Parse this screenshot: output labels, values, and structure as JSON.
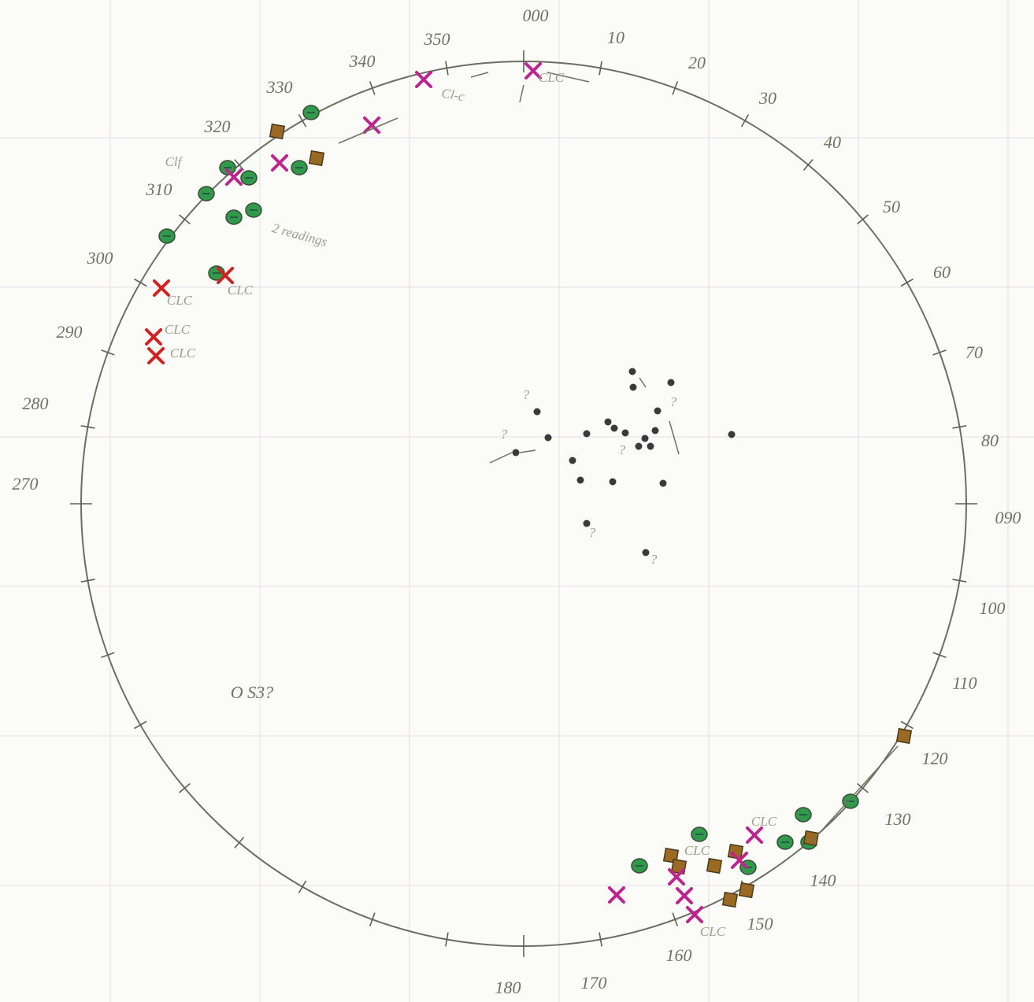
{
  "stereonet": {
    "azimuth_labels": [
      "000",
      "10",
      "20",
      "30",
      "40",
      "50",
      "60",
      "70",
      "80",
      "090",
      "100",
      "110",
      "120",
      "130",
      "140",
      "150",
      "160",
      "170",
      "180",
      "270",
      "280",
      "290",
      "300",
      "310",
      "320",
      "330",
      "340",
      "350"
    ],
    "annotations": [
      {
        "text": "Clf"
      },
      {
        "text": "2 readings"
      },
      {
        "text": "CLC"
      },
      {
        "text": "Cl-c"
      },
      {
        "text": "CLC"
      },
      {
        "text": "CLC"
      },
      {
        "text": "CLC"
      },
      {
        "text": "CLC"
      },
      {
        "text": "CLC"
      },
      {
        "text": "CLC"
      },
      {
        "text": "CLC"
      },
      {
        "text": "O S3?"
      },
      {
        "text": "?"
      },
      {
        "text": "?"
      },
      {
        "text": "?"
      },
      {
        "text": "?"
      },
      {
        "text": "?"
      },
      {
        "text": "?"
      }
    ]
  }
}
